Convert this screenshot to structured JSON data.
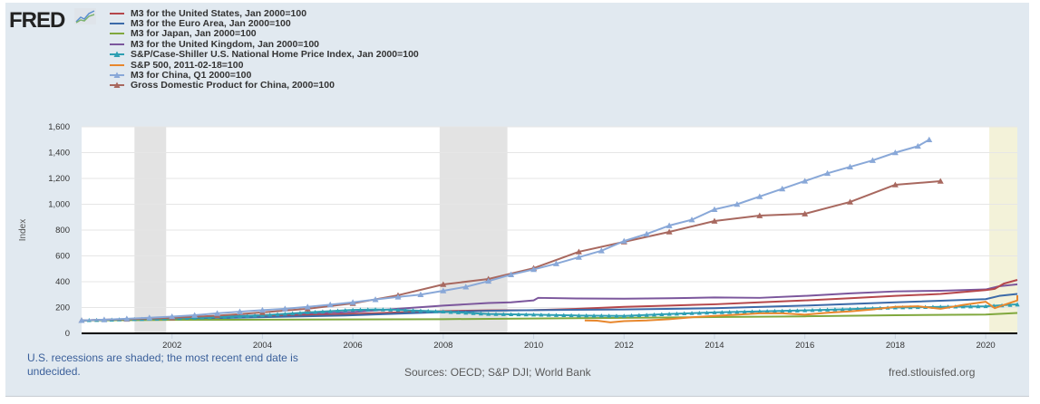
{
  "branding": {
    "logo_text": "FRED",
    "logo_icon": "fred-chart-icon"
  },
  "footer": {
    "recession_note": "U.S. recessions are shaded; the most recent end date is undecided.",
    "sources": "Sources: OECD; S&P DJI; World Bank",
    "site": "fred.stlouisfed.org"
  },
  "chart_data": {
    "type": "line",
    "title": "",
    "xlabel": "",
    "ylabel": "Index",
    "xlim": [
      2000.0,
      2021.0
    ],
    "ylim": [
      0,
      1600
    ],
    "yticks": [
      0,
      200,
      400,
      600,
      800,
      1000,
      1200,
      1400,
      1600
    ],
    "ytick_labels": [
      "0",
      "200",
      "400",
      "600",
      "800",
      "1,000",
      "1,200",
      "1,400",
      "1,600"
    ],
    "xticks": [
      2002,
      2004,
      2006,
      2008,
      2010,
      2012,
      2014,
      2016,
      2018,
      2020
    ],
    "xtick_labels": [
      "2002",
      "2004",
      "2006",
      "2008",
      "2010",
      "2012",
      "2014",
      "2016",
      "2018",
      "2020"
    ],
    "grid": true,
    "legend_position": "top-left",
    "recessions": [
      {
        "start": 2001.17,
        "end": 2001.87,
        "color": "#e3e3e3"
      },
      {
        "start": 2007.92,
        "end": 2009.42,
        "color": "#e3e3e3"
      },
      {
        "start": 2020.08,
        "end": 2021.0,
        "color": "#f3f2d9"
      }
    ],
    "series": [
      {
        "name": "M3 for the United States, Jan 2000=100",
        "color": "#b5474b",
        "marker": "none",
        "x": [
          2000,
          2001,
          2002,
          2003,
          2004,
          2005,
          2006,
          2007,
          2008,
          2009,
          2010,
          2011,
          2012,
          2013,
          2014,
          2015,
          2016,
          2017,
          2018,
          2019,
          2020,
          2020.2,
          2020.4,
          2020.9
        ],
        "y": [
          100,
          110,
          120,
          127,
          133,
          140,
          150,
          162,
          172,
          178,
          180,
          190,
          205,
          215,
          225,
          240,
          255,
          272,
          290,
          305,
          335,
          345,
          385,
          414
        ]
      },
      {
        "name": "M3 for the Euro Area, Jan 2000=100",
        "color": "#3b6aa8",
        "marker": "none",
        "x": [
          2000,
          2002,
          2004,
          2006,
          2008,
          2009,
          2010,
          2012,
          2014,
          2016,
          2018,
          2020,
          2020.3,
          2020.9
        ],
        "y": [
          100,
          112,
          125,
          140,
          165,
          175,
          180,
          185,
          195,
          215,
          240,
          265,
          290,
          305
        ]
      },
      {
        "name": "M3 for Japan, Jan 2000=100",
        "color": "#80a83e",
        "marker": "none",
        "x": [
          2000,
          2002,
          2004,
          2006,
          2008,
          2010,
          2012,
          2014,
          2016,
          2018,
          2020,
          2020.9
        ],
        "y": [
          100,
          104,
          106,
          108,
          110,
          115,
          120,
          126,
          132,
          140,
          146,
          158
        ]
      },
      {
        "name": "M3 for the United Kingdom, Jan 2000=100",
        "color": "#7b569c",
        "marker": "none",
        "x": [
          2000,
          2002,
          2004,
          2006,
          2007,
          2008,
          2008.5,
          2009,
          2009.5,
          2010.0,
          2010.1,
          2011,
          2012,
          2013,
          2014,
          2015,
          2016,
          2017,
          2018,
          2019,
          2020,
          2020.3,
          2020.9
        ],
        "y": [
          100,
          118,
          140,
          165,
          190,
          215,
          225,
          235,
          240,
          255,
          275,
          270,
          268,
          272,
          278,
          275,
          290,
          310,
          325,
          330,
          340,
          365,
          380
        ]
      },
      {
        "name": "S&P/Case-Shiller U.S. National Home Price Index, Jan 2000=100",
        "color": "#2e9fb3",
        "marker": "triangle-dense",
        "x": [
          2000,
          2001,
          2002,
          2003,
          2004,
          2005,
          2006,
          2006.5,
          2007,
          2008,
          2009,
          2010,
          2011,
          2012,
          2013,
          2014,
          2015,
          2016,
          2017,
          2018,
          2019,
          2020,
          2020.9
        ],
        "y": [
          100,
          108,
          116,
          126,
          140,
          162,
          182,
          185,
          182,
          168,
          150,
          145,
          138,
          135,
          150,
          162,
          170,
          178,
          188,
          200,
          205,
          210,
          225
        ]
      },
      {
        "name": "S&P 500, 2011-02-18=100",
        "color": "#e8872d",
        "marker": "none",
        "x": [
          2011.13,
          2011.4,
          2011.7,
          2012.0,
          2012.5,
          2013.0,
          2013.5,
          2014.0,
          2014.5,
          2015.0,
          2015.5,
          2016.0,
          2016.5,
          2017.0,
          2017.5,
          2018.0,
          2018.5,
          2019.0,
          2019.5,
          2020.0,
          2020.2,
          2020.4,
          2020.7,
          2020.9,
          2021.0
        ],
        "y": [
          100,
          98,
          85,
          95,
          100,
          110,
          125,
          135,
          145,
          155,
          155,
          145,
          160,
          170,
          185,
          205,
          210,
          190,
          220,
          245,
          195,
          220,
          255,
          280,
          295
        ]
      },
      {
        "name": "M3 for China, Q1 2000=100",
        "color": "#89a8d8",
        "marker": "triangle",
        "x": [
          2000,
          2000.5,
          2001,
          2001.5,
          2002,
          2002.5,
          2003,
          2003.5,
          2004,
          2004.5,
          2005,
          2005.5,
          2006,
          2006.5,
          2007,
          2007.5,
          2008,
          2008.5,
          2009,
          2009.5,
          2010,
          2010.5,
          2011,
          2011.5,
          2012,
          2012.5,
          2013,
          2013.5,
          2014,
          2014.5,
          2015,
          2015.5,
          2016,
          2016.5,
          2017,
          2017.5,
          2018,
          2018.5,
          2018.75
        ],
        "y": [
          100,
          106,
          113,
          121,
          130,
          140,
          155,
          168,
          180,
          190,
          205,
          222,
          240,
          262,
          282,
          300,
          330,
          360,
          405,
          455,
          495,
          540,
          590,
          640,
          715,
          770,
          835,
          880,
          960,
          1000,
          1060,
          1120,
          1180,
          1240,
          1290,
          1340,
          1400,
          1450,
          1500
        ]
      },
      {
        "name": "Gross Domestic Product for China, 2000=100",
        "color": "#a8685f",
        "marker": "triangle",
        "x": [
          2000,
          2001,
          2002,
          2003,
          2004,
          2005,
          2006,
          2007,
          2008,
          2009,
          2010,
          2011,
          2012,
          2013,
          2014,
          2015,
          2016,
          2017,
          2018,
          2019
        ],
        "y": [
          100,
          110,
          120,
          137,
          162,
          190,
          232,
          295,
          379,
          421,
          505,
          632,
          709,
          786,
          870,
          912,
          926,
          1018,
          1151,
          1179
        ]
      }
    ]
  }
}
